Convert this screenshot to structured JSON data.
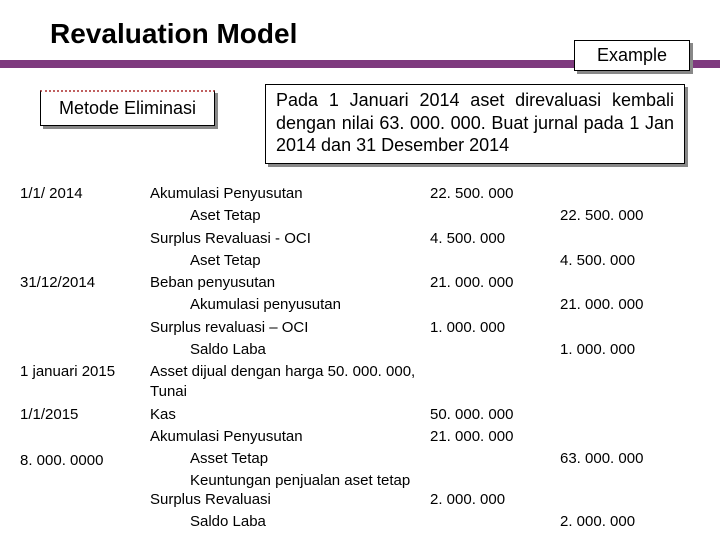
{
  "title": "Revaluation Model",
  "example_label": "Example",
  "method_label": "Metode Eliminasi",
  "description": "Pada 1 Januari 2014 aset direvaluasi kembali dengan nilai 63. 000. 000. Buat jurnal pada 1 Jan 2014 dan 31 Desember 2014",
  "rows": [
    {
      "date": "1/1/ 2014",
      "acc": "Akumulasi Penyusutan",
      "indent": 0,
      "debit": "22. 500. 000",
      "credit": ""
    },
    {
      "date": "",
      "acc": "Aset Tetap",
      "indent": 1,
      "debit": "",
      "credit": "22. 500. 000"
    },
    {
      "date": "",
      "acc": "Surplus Revaluasi - OCI",
      "indent": 0,
      "debit": "4. 500. 000",
      "credit": ""
    },
    {
      "date": "",
      "acc": "Aset Tetap",
      "indent": 1,
      "debit": "",
      "credit": "4. 500. 000"
    },
    {
      "date": "31/12/2014",
      "acc": "Beban penyusutan",
      "indent": 0,
      "debit": "21. 000. 000",
      "credit": ""
    },
    {
      "date": "",
      "acc": "Akumulasi penyusutan",
      "indent": 1,
      "debit": "",
      "credit": "21. 000. 000"
    },
    {
      "date": "",
      "acc": "Surplus revaluasi – OCI",
      "indent": 0,
      "debit": "1. 000. 000",
      "credit": ""
    },
    {
      "date": "",
      "acc": "Saldo Laba",
      "indent": 1,
      "debit": "",
      "credit": "1. 000. 000"
    },
    {
      "date": "1 januari 2015",
      "acc": "Asset dijual dengan harga 50. 000. 000, Tunai",
      "indent": 0,
      "debit": "",
      "credit": ""
    },
    {
      "date": "1/1/2015",
      "acc": "Kas",
      "indent": 0,
      "debit": "50. 000. 000",
      "credit": ""
    },
    {
      "date": "",
      "acc": "Akumulasi Penyusutan",
      "indent": 0,
      "debit": "21. 000. 000",
      "credit": ""
    },
    {
      "date": "",
      "acc": "Asset Tetap",
      "indent": 1,
      "debit": "",
      "credit": "63. 000. 000"
    },
    {
      "date": "",
      "acc": "Keuntungan penjualan aset tetap",
      "indent": 1,
      "debit": "",
      "credit": ""
    }
  ],
  "footnote": "8. 000. 0000",
  "bottom_rows": [
    {
      "date": "",
      "acc": "Surplus Revaluasi",
      "indent": 0,
      "debit": "2. 000. 000",
      "credit": ""
    },
    {
      "date": "",
      "acc": "Saldo Laba",
      "indent": 1,
      "debit": "",
      "credit": "2. 000. 000"
    }
  ],
  "colors": {
    "accent": "#7e3a7e",
    "text": "#000000",
    "background": "#ffffff"
  }
}
